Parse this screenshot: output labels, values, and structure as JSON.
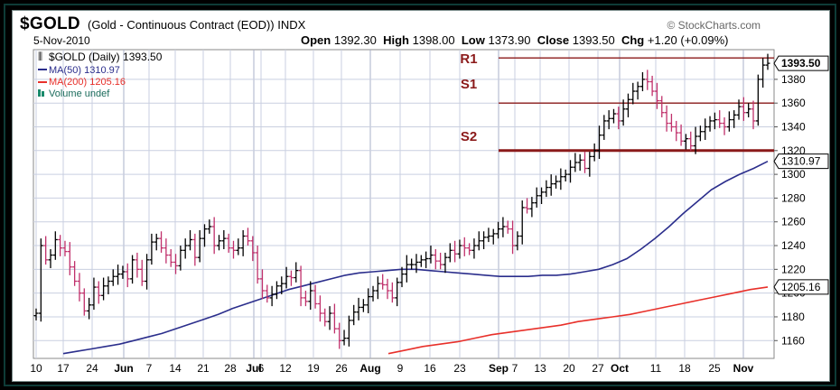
{
  "header": {
    "symbol": "$GOLD",
    "name": "(Gold - Continuous Contract (EOD))",
    "exchange": "INDX",
    "date": "5-Nov-2010",
    "credit": "© StockCharts.com",
    "open_label": "Open",
    "open": "1392.30",
    "high_label": "High",
    "high": "1398.00",
    "low_label": "Low",
    "low": "1373.90",
    "close_label": "Close",
    "close": "1393.50",
    "chg_label": "Chg",
    "chg": "+1.20 (+0.09%)"
  },
  "legend": {
    "price": "$GOLD (Daily) 1393.50",
    "ma50": "MA(50) 1310.97",
    "ma200": "MA(200) 1205.16",
    "volume": "Volume undef"
  },
  "colors": {
    "up": "#000000",
    "down": "#c0306b",
    "ma50": "#2b2e8c",
    "ma200": "#e8302a",
    "levels": "#8b1a1a",
    "grid": "#c9cfe0"
  },
  "annotations": [
    {
      "label": "R1",
      "value": 1398
    },
    {
      "label": "S1",
      "value": 1360
    },
    {
      "label": "S2",
      "value": 1320
    }
  ],
  "price_tags": [
    {
      "text": "1393.50",
      "value": 1393.5
    },
    {
      "text": "1310.97",
      "value": 1310.97
    },
    {
      "text": "1205.16",
      "value": 1205.16
    }
  ],
  "chart_data": {
    "type": "ohlc",
    "ylim": [
      1145,
      1405
    ],
    "y_ticks": [
      1160,
      1180,
      1200,
      1220,
      1240,
      1260,
      1280,
      1300,
      1320,
      1340,
      1360,
      1380
    ],
    "x_labels": [
      "10",
      "17",
      "24",
      "Jun",
      "7",
      "14",
      "21",
      "28",
      "Jul",
      "6",
      "12",
      "19",
      "26",
      "Aug",
      "9",
      "16",
      "23",
      "Sep",
      "7",
      "13",
      "20",
      "27",
      "Oct",
      "11",
      "18",
      "25",
      "Nov"
    ],
    "month_labels": [
      "Jun",
      "Jul",
      "Aug",
      "Sep",
      "Oct",
      "Nov"
    ],
    "grid": true,
    "close": [
      1183,
      1240,
      1228,
      1232,
      1245,
      1238,
      1235,
      1222,
      1210,
      1200,
      1185,
      1190,
      1205,
      1198,
      1206,
      1210,
      1214,
      1216,
      1218,
      1212,
      1228,
      1220,
      1210,
      1228,
      1243,
      1246,
      1238,
      1232,
      1226,
      1223,
      1236,
      1240,
      1245,
      1230,
      1246,
      1254,
      1256,
      1240,
      1244,
      1246,
      1238,
      1236,
      1238,
      1248,
      1244,
      1234,
      1212,
      1202,
      1196,
      1199,
      1206,
      1208,
      1214,
      1213,
      1219,
      1196,
      1193,
      1202,
      1191,
      1183,
      1176,
      1183,
      1170,
      1160,
      1162,
      1177,
      1184,
      1188,
      1190,
      1197,
      1202,
      1208,
      1207,
      1202,
      1196,
      1209,
      1216,
      1224,
      1224,
      1226,
      1228,
      1229,
      1232,
      1227,
      1224,
      1230,
      1236,
      1233,
      1240,
      1238,
      1236,
      1240,
      1244,
      1247,
      1248,
      1250,
      1254,
      1256,
      1254,
      1240,
      1248,
      1272,
      1271,
      1276,
      1282,
      1285,
      1289,
      1292,
      1294,
      1298,
      1300,
      1306,
      1310,
      1312,
      1305,
      1315,
      1320,
      1333,
      1345,
      1347,
      1351,
      1345,
      1355,
      1363,
      1370,
      1374,
      1380,
      1378,
      1370,
      1362,
      1352,
      1343,
      1340,
      1335,
      1328,
      1330,
      1324,
      1332,
      1336,
      1340,
      1345,
      1346,
      1343,
      1340,
      1346,
      1350,
      1357,
      1352,
      1355,
      1345,
      1380,
      1392,
      1393.5
    ],
    "ma50": [
      1149,
      1151,
      1153,
      1155,
      1157,
      1160,
      1163,
      1166,
      1170,
      1174,
      1178,
      1182,
      1187,
      1191,
      1195,
      1199,
      1203,
      1206,
      1209,
      1212,
      1215,
      1217,
      1218,
      1219,
      1220,
      1220,
      1219,
      1218,
      1217,
      1216,
      1215,
      1214,
      1214,
      1214,
      1215,
      1215,
      1216,
      1218,
      1220,
      1224,
      1229,
      1237,
      1246,
      1256,
      1267,
      1277,
      1287,
      1294,
      1300,
      1305,
      1310.97
    ],
    "ma200": [
      1149,
      1152,
      1155,
      1157,
      1159,
      1162,
      1165,
      1167,
      1169,
      1171,
      1173,
      1176,
      1178,
      1180,
      1182,
      1185,
      1188,
      1191,
      1194,
      1197,
      1200,
      1203,
      1205.16
    ],
    "series": [
      {
        "name": "$GOLD",
        "values_key": "close"
      },
      {
        "name": "MA(50)",
        "values_key": "ma50"
      },
      {
        "name": "MA(200)",
        "values_key": "ma200"
      }
    ]
  }
}
